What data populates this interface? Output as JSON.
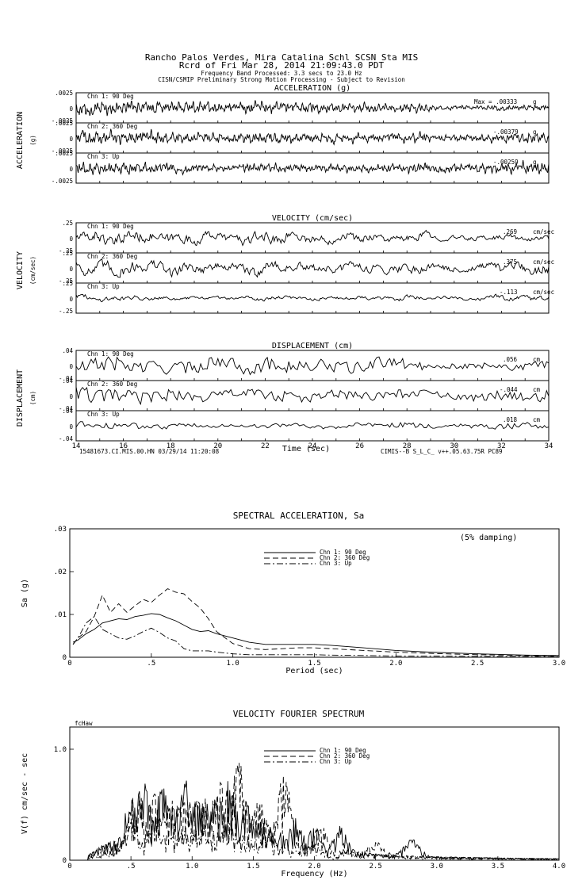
{
  "header": {
    "line1": "Rancho Palos Verdes, Mira Catalina Schl    SCSN Sta MIS",
    "line2": "Rcrd of Fri Mar 28, 2014 21:09:43.0 PDT",
    "line3": "Frequency Band Processed: 3.3 secs to 23.0 Hz",
    "line4": "CISN/CSMIP Preliminary Strong Motion Processing - Subject to Revision"
  },
  "footer": {
    "left": "15481673.CI.MIS.00.HN 03/29/14 11:20:08",
    "right": "CIMIS--B  S_L_C_  v++.05.63.75R PC89"
  },
  "chart_data": [
    {
      "type": "line",
      "title": "ACCELERATION (g)",
      "ylabel": "ACCELERATION",
      "yunit": "(g)",
      "x_range": [
        14,
        34
      ],
      "ylim": [
        -0.0025,
        0.0025
      ],
      "yticks": [
        ".0025",
        "0",
        "-.0025"
      ],
      "series": [
        {
          "name": "Chn 1: 90 Deg",
          "peak_label": "Max =  .00333",
          "unit": "g",
          "peak": 0.00333
        },
        {
          "name": "Chn 2: 360 Deg",
          "peak_label": "-.00379",
          "unit": "g",
          "peak": 0.00379
        },
        {
          "name": "Chn 3: Up",
          "peak_label": "-.00259",
          "unit": "g",
          "peak": 0.00259
        }
      ]
    },
    {
      "type": "line",
      "title": "VELOCITY (cm/sec)",
      "ylabel": "VELOCITY",
      "yunit": "(cm/sec)",
      "x_range": [
        14,
        34
      ],
      "ylim": [
        -0.25,
        0.25
      ],
      "yticks": [
        ".25",
        "0",
        "-.25"
      ],
      "series": [
        {
          "name": "Chn 1: 90 Deg",
          "peak_label": ".269",
          "unit": "cm/sec",
          "peak": 0.269
        },
        {
          "name": "Chn 2: 360 Deg",
          "peak_label": ".375",
          "unit": "cm/sec",
          "peak": 0.375
        },
        {
          "name": "Chn 3: Up",
          "peak_label": "-.113",
          "unit": "cm/sec",
          "peak": 0.113
        }
      ]
    },
    {
      "type": "line",
      "title": "DISPLACEMENT (cm)",
      "ylabel": "DISPLACEMENT",
      "yunit": "(cm)",
      "x_range": [
        14,
        34
      ],
      "ylim": [
        -0.04,
        0.04
      ],
      "yticks": [
        ".04",
        "0",
        "-.04"
      ],
      "xlabel": "Time (sec)",
      "xticks": [
        "14",
        "16",
        "18",
        "20",
        "22",
        "24",
        "26",
        "28",
        "30",
        "32",
        "34"
      ],
      "series": [
        {
          "name": "Chn 1: 90 Deg",
          "peak_label": ".056",
          "unit": "cm",
          "peak": 0.056
        },
        {
          "name": "Chn 2: 360 Deg",
          "peak_label": "-.044",
          "unit": "cm",
          "peak": 0.044
        },
        {
          "name": "Chn 3: Up",
          "peak_label": ".018",
          "unit": "cm",
          "peak": 0.018
        }
      ]
    },
    {
      "type": "line",
      "title": "SPECTRAL ACCELERATION, Sa",
      "xlabel": "Period (sec)",
      "ylabel": "Sa (g)",
      "xlim": [
        0,
        3.0
      ],
      "ylim": [
        0,
        0.03
      ],
      "xticks": [
        {
          "v": 0,
          "t": "0"
        },
        {
          "v": 0.5,
          "t": ".5"
        },
        {
          "v": 1.0,
          "t": "1.0"
        },
        {
          "v": 1.5,
          "t": "1.5"
        },
        {
          "v": 2.0,
          "t": "2.0"
        },
        {
          "v": 2.5,
          "t": "2.5"
        },
        {
          "v": 3.0,
          "t": "3.0"
        }
      ],
      "yticks": [
        {
          "v": 0,
          "t": "0"
        },
        {
          "v": 0.01,
          "t": ".01"
        },
        {
          "v": 0.02,
          "t": ".02"
        },
        {
          "v": 0.03,
          "t": ".03"
        }
      ],
      "annotation": "(5% damping)",
      "series": [
        {
          "name": "Chn 1: 90 Deg",
          "dash": "",
          "x": [
            0.02,
            0.05,
            0.1,
            0.15,
            0.2,
            0.25,
            0.3,
            0.35,
            0.4,
            0.45,
            0.5,
            0.55,
            0.6,
            0.65,
            0.7,
            0.75,
            0.8,
            0.85,
            0.9,
            1.0,
            1.1,
            1.2,
            1.4,
            1.5,
            1.6,
            1.8,
            2.0,
            2.2,
            2.5,
            2.8,
            3.0
          ],
          "y": [
            0.0035,
            0.004,
            0.0055,
            0.0065,
            0.008,
            0.0085,
            0.009,
            0.0088,
            0.0095,
            0.0098,
            0.0102,
            0.01,
            0.0092,
            0.0085,
            0.0075,
            0.0065,
            0.006,
            0.0062,
            0.0055,
            0.0045,
            0.0035,
            0.003,
            0.003,
            0.003,
            0.0028,
            0.0022,
            0.0016,
            0.0012,
            0.0008,
            0.0005,
            0.0004
          ]
        },
        {
          "name": "Chn 2: 360 Deg",
          "dash": "7,4",
          "x": [
            0.02,
            0.05,
            0.1,
            0.15,
            0.2,
            0.25,
            0.3,
            0.35,
            0.4,
            0.45,
            0.5,
            0.55,
            0.6,
            0.65,
            0.7,
            0.75,
            0.8,
            0.85,
            0.9,
            1.0,
            1.1,
            1.2,
            1.4,
            1.5,
            1.6,
            1.8,
            2.0,
            2.2,
            2.5,
            2.8,
            3.0
          ],
          "y": [
            0.003,
            0.0045,
            0.006,
            0.0095,
            0.0145,
            0.0105,
            0.0125,
            0.0105,
            0.012,
            0.0135,
            0.0128,
            0.0145,
            0.016,
            0.0152,
            0.0148,
            0.013,
            0.0115,
            0.009,
            0.006,
            0.0032,
            0.002,
            0.0018,
            0.0022,
            0.0022,
            0.002,
            0.0016,
            0.0012,
            0.0009,
            0.0006,
            0.0004,
            0.0003
          ]
        },
        {
          "name": "Chn 3: Up",
          "dash": "8,3,2,3",
          "x": [
            0.02,
            0.05,
            0.1,
            0.15,
            0.2,
            0.25,
            0.3,
            0.35,
            0.4,
            0.45,
            0.5,
            0.55,
            0.6,
            0.65,
            0.7,
            0.75,
            0.8,
            0.85,
            0.9,
            1.0,
            1.1,
            1.2,
            1.4,
            1.5,
            1.6,
            1.8,
            2.0,
            2.2,
            2.5,
            2.8,
            3.0
          ],
          "y": [
            0.003,
            0.0045,
            0.008,
            0.0095,
            0.0065,
            0.0055,
            0.0045,
            0.0042,
            0.005,
            0.006,
            0.0068,
            0.0058,
            0.0045,
            0.0038,
            0.002,
            0.0015,
            0.0015,
            0.0015,
            0.0012,
            0.0008,
            0.0006,
            0.0006,
            0.0006,
            0.0006,
            0.0005,
            0.0004,
            0.0003,
            0.0003,
            0.0002,
            0.0002,
            0.0002
          ]
        }
      ]
    },
    {
      "type": "line",
      "title": "VELOCITY FOURIER SPECTRUM",
      "xlabel": "Frequency (Hz)",
      "ylabel": "V(f)   cm/sec - sec",
      "corner_label": "fcHaw",
      "xlim": [
        0,
        4.0
      ],
      "ylim": [
        0,
        1.2
      ],
      "xticks": [
        {
          "v": 0,
          "t": "0"
        },
        {
          "v": 0.5,
          "t": ".5"
        },
        {
          "v": 1.0,
          "t": "1.0"
        },
        {
          "v": 1.5,
          "t": "1.5"
        },
        {
          "v": 2.0,
          "t": "2.0"
        },
        {
          "v": 2.5,
          "t": "2.5"
        },
        {
          "v": 3.0,
          "t": "3.0"
        },
        {
          "v": 3.5,
          "t": "3.5"
        },
        {
          "v": 4.0,
          "t": "4.0"
        }
      ],
      "yticks": [
        {
          "v": 0,
          "t": "0"
        },
        {
          "v": 1.0,
          "t": "1.0"
        }
      ],
      "series": [
        {
          "name": "Chn 1: 90 Deg",
          "dash": "",
          "peaks": [
            [
              0.5,
              0.55
            ],
            [
              0.6,
              0.72
            ],
            [
              0.75,
              0.68
            ],
            [
              0.95,
              0.72
            ],
            [
              1.2,
              0.65
            ],
            [
              1.3,
              0.72
            ],
            [
              1.45,
              0.5
            ],
            [
              1.85,
              0.38
            ],
            [
              2.0,
              0.3
            ],
            [
              2.2,
              0.25
            ],
            [
              2.8,
              0.15
            ]
          ]
        },
        {
          "name": "Chn 2: 360 Deg",
          "dash": "7,4",
          "peaks": [
            [
              0.55,
              0.65
            ],
            [
              0.7,
              0.6
            ],
            [
              0.85,
              0.55
            ],
            [
              1.1,
              0.6
            ],
            [
              1.25,
              0.75
            ],
            [
              1.38,
              0.9
            ],
            [
              1.55,
              0.55
            ],
            [
              1.75,
              0.78
            ],
            [
              2.05,
              0.32
            ],
            [
              2.5,
              0.12
            ]
          ]
        },
        {
          "name": "Chn 3: Up",
          "dash": "8,3,2,3",
          "peaks": [
            [
              0.5,
              0.35
            ],
            [
              0.7,
              0.4
            ],
            [
              1.0,
              0.3
            ],
            [
              1.3,
              0.35
            ],
            [
              1.6,
              0.25
            ],
            [
              2.0,
              0.15
            ]
          ]
        }
      ]
    }
  ]
}
